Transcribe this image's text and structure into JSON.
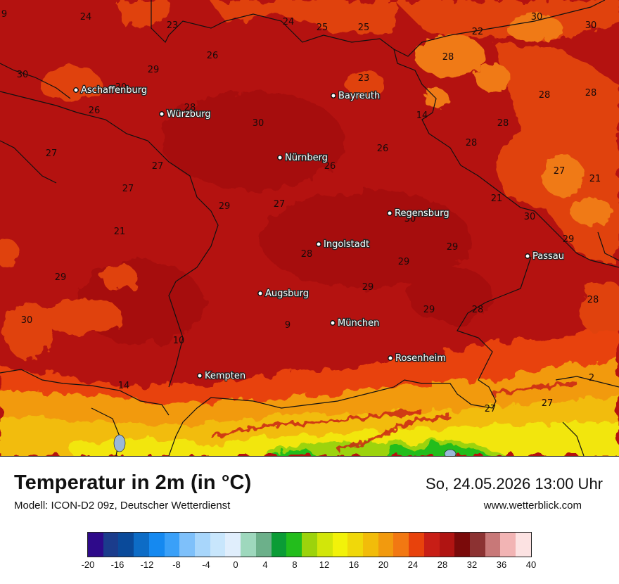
{
  "title": "Temperatur in 2m (in °C)",
  "model": "Modell: ICON-D2 09z, Deutscher Wetterdienst",
  "datetime": "So, 24.05.2026 13:00 Uhr",
  "website": "www.wetterblick.com",
  "cities": [
    {
      "name": "Aschaffenburg"
    },
    {
      "name": "Würzburg"
    },
    {
      "name": "Bayreuth"
    },
    {
      "name": "Nürnberg"
    },
    {
      "name": "Regensburg"
    },
    {
      "name": "Ingolstadt"
    },
    {
      "name": "Passau"
    },
    {
      "name": "Augsburg"
    },
    {
      "name": "München"
    },
    {
      "name": "Rosenheim"
    },
    {
      "name": "Kempten"
    }
  ],
  "isotherm_labels": [
    "9",
    "24",
    "23",
    "24",
    "25",
    "25",
    "22",
    "30",
    "30",
    "26",
    "29",
    "30",
    "23",
    "28",
    "28",
    "28",
    "30",
    "26",
    "28",
    "28",
    "14",
    "30",
    "26",
    "28",
    "27",
    "26",
    "27",
    "27",
    "27",
    "29",
    "27",
    "21",
    "21",
    "30",
    "30",
    "21",
    "29",
    "29",
    "28",
    "29",
    "29",
    "29",
    "29",
    "28",
    "28",
    "30",
    "9",
    "10",
    "14",
    "27",
    "27",
    "2"
  ],
  "legend": {
    "colors": [
      "#2e0a8a",
      "#1b3c8c",
      "#0a4a9a",
      "#0d6cc6",
      "#1589f0",
      "#3aa0f8",
      "#7ec0fa",
      "#a8d6fb",
      "#c8e6fc",
      "#e0eefc",
      "#9ed8bd",
      "#6cb08a",
      "#0b9c36",
      "#23bd1c",
      "#9cd30c",
      "#d2e60a",
      "#f2f20a",
      "#f0d80a",
      "#f2bc0a",
      "#f29a0e",
      "#f27812",
      "#e8420c",
      "#c81e16",
      "#b01412",
      "#7a0a0a",
      "#8c3232",
      "#c87878",
      "#f2b4b4",
      "#fce2e2"
    ],
    "ticks": [
      "-20",
      "-16",
      "-12",
      "-8",
      "-4",
      "0",
      "4",
      "8",
      "12",
      "16",
      "20",
      "24",
      "28",
      "32",
      "36",
      "40"
    ]
  }
}
